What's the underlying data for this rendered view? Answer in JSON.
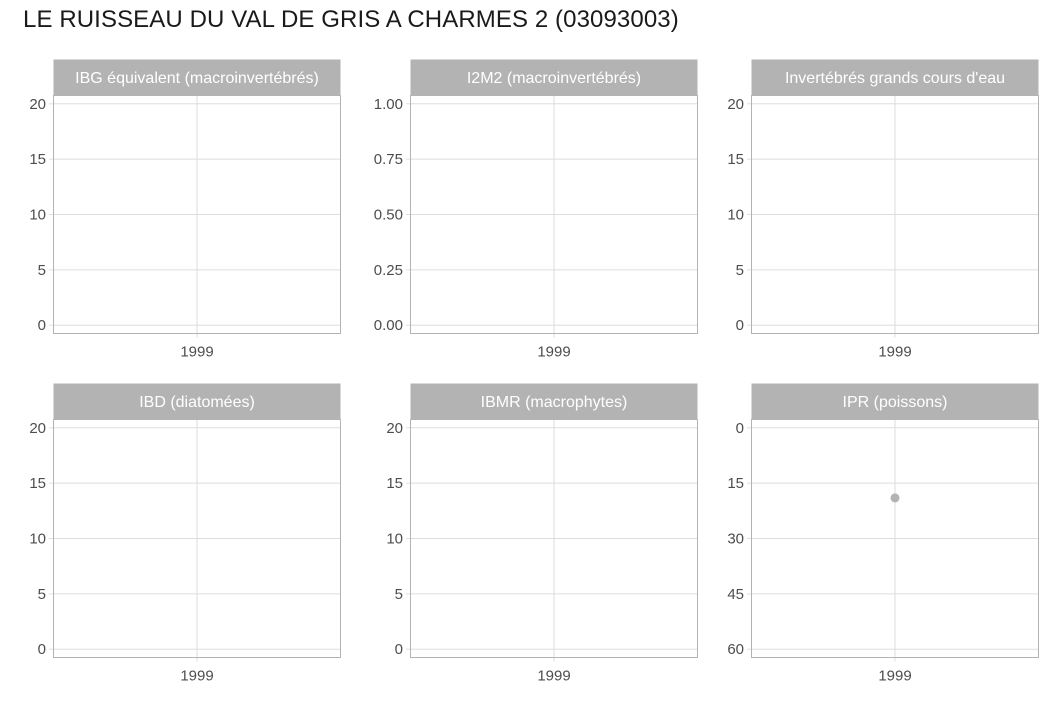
{
  "title": "LE RUISSEAU DU VAL DE GRIS A CHARMES 2 (03093003)",
  "colors": {
    "strip_bg": "#b3b3b3",
    "strip_text": "#ffffff",
    "panel_border": "#b3b3b3",
    "grid": "#dedede",
    "tick_text": "#4d4d4d",
    "point": "#b3b3b3"
  },
  "chart_data": [
    {
      "type": "scatter",
      "panel": "IBG équivalent (macroinvertébrés)",
      "x_ticks": [
        "1999"
      ],
      "y_ticks": [
        "0",
        "5",
        "10",
        "15",
        "20"
      ],
      "y_tick_values": [
        0,
        5,
        10,
        15,
        20
      ],
      "ylim": [
        -0.75,
        20.75
      ],
      "y_reversed": false,
      "grid": true,
      "points": []
    },
    {
      "type": "scatter",
      "panel": "I2M2 (macroinvertébrés)",
      "x_ticks": [
        "1999"
      ],
      "y_ticks": [
        "0.00",
        "0.25",
        "0.50",
        "0.75",
        "1.00"
      ],
      "y_tick_values": [
        0,
        0.25,
        0.5,
        0.75,
        1.0
      ],
      "ylim": [
        -0.0375,
        1.0375
      ],
      "y_reversed": false,
      "grid": true,
      "points": []
    },
    {
      "type": "scatter",
      "panel": "Invertébrés grands cours d'eau",
      "x_ticks": [
        "1999"
      ],
      "y_ticks": [
        "0",
        "5",
        "10",
        "15",
        "20"
      ],
      "y_tick_values": [
        0,
        5,
        10,
        15,
        20
      ],
      "ylim": [
        -0.75,
        20.75
      ],
      "y_reversed": false,
      "grid": true,
      "points": []
    },
    {
      "type": "scatter",
      "panel": "IBD (diatomées)",
      "x_ticks": [
        "1999"
      ],
      "y_ticks": [
        "0",
        "5",
        "10",
        "15",
        "20"
      ],
      "y_tick_values": [
        0,
        5,
        10,
        15,
        20
      ],
      "ylim": [
        -0.75,
        20.75
      ],
      "y_reversed": false,
      "grid": true,
      "points": []
    },
    {
      "type": "scatter",
      "panel": "IBMR (macrophytes)",
      "x_ticks": [
        "1999"
      ],
      "y_ticks": [
        "0",
        "5",
        "10",
        "15",
        "20"
      ],
      "y_tick_values": [
        0,
        5,
        10,
        15,
        20
      ],
      "ylim": [
        -0.75,
        20.75
      ],
      "y_reversed": false,
      "grid": true,
      "points": []
    },
    {
      "type": "scatter",
      "panel": "IPR (poissons)",
      "x_ticks": [
        "1999"
      ],
      "y_ticks": [
        "0",
        "15",
        "30",
        "45",
        "60"
      ],
      "y_tick_values": [
        0,
        15,
        30,
        45,
        60
      ],
      "ylim": [
        -2.25,
        62.25
      ],
      "y_reversed": true,
      "grid": true,
      "points": [
        {
          "x": "1999",
          "y": 19
        }
      ]
    }
  ]
}
